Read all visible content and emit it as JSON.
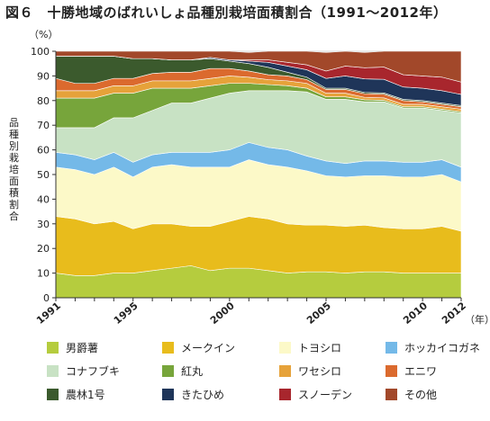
{
  "title": "図６　十勝地域のばれいしょ品種別栽培面積割合（1991～2012年）",
  "chart_data": {
    "type": "area",
    "stacked": true,
    "title": "図６　十勝地域のばれいしょ品種別栽培面積割合（1991～2012年）",
    "ylabel": "品種別栽培面積割合",
    "y_unit": "（%）",
    "xlabel": "（年）",
    "ylim": [
      0,
      100
    ],
    "y_ticks": [
      0,
      10,
      20,
      30,
      40,
      50,
      60,
      70,
      80,
      90,
      100
    ],
    "x_ticks": [
      1991,
      1995,
      2000,
      2005,
      2010,
      2012
    ],
    "grid": true,
    "legend_position": "bottom",
    "x": [
      1991,
      1992,
      1993,
      1994,
      1995,
      1996,
      1997,
      1998,
      1999,
      2000,
      2001,
      2002,
      2003,
      2004,
      2005,
      2006,
      2007,
      2008,
      2009,
      2010,
      2011,
      2012
    ],
    "series": [
      {
        "name": "男爵薯",
        "color": "#b5cc3e",
        "values": [
          10,
          9,
          9,
          10,
          10,
          11,
          12,
          13,
          11,
          12,
          12,
          11,
          10,
          10.5,
          10.5,
          10,
          10.5,
          10.5,
          10,
          10,
          10,
          10
        ]
      },
      {
        "name": "メークイン",
        "color": "#e8bc1c",
        "values": [
          23,
          23,
          21,
          21,
          18,
          19,
          18,
          16,
          18,
          19,
          21,
          21,
          20,
          19,
          19,
          19,
          19,
          18,
          18,
          18,
          19,
          17
        ]
      },
      {
        "name": "トヨシロ",
        "color": "#fcf9c8",
        "values": [
          20,
          20,
          20,
          22,
          21,
          23,
          24,
          24,
          24,
          22,
          23,
          22,
          23,
          22,
          20,
          20,
          20,
          21,
          21,
          21,
          21,
          20
        ]
      },
      {
        "name": "ホッカイコガネ",
        "color": "#74b9e8",
        "values": [
          6,
          6,
          6,
          6,
          6,
          5,
          5,
          6,
          6,
          7,
          7,
          7,
          7,
          6,
          6,
          5.5,
          6,
          6,
          6,
          6,
          6,
          6
        ]
      },
      {
        "name": "コナフブキ",
        "color": "#c8e2c4",
        "values": [
          10,
          11,
          13,
          14,
          18,
          18,
          20,
          20,
          22,
          23,
          21,
          23,
          24,
          26,
          25,
          26,
          24,
          24,
          22,
          22,
          20,
          22
        ]
      },
      {
        "name": "紅丸",
        "color": "#77a53b",
        "values": [
          12,
          12,
          12,
          10,
          10,
          9,
          6,
          6,
          5,
          4,
          3,
          2.5,
          2,
          1.5,
          1,
          1,
          0.8,
          0.6,
          0.5,
          0.5,
          0.5,
          0.5
        ]
      },
      {
        "name": "ワセシロ",
        "color": "#e6a23a",
        "values": [
          3,
          3,
          3,
          3,
          3,
          3,
          3,
          3,
          3,
          3,
          2.5,
          2,
          2,
          2,
          1.5,
          1.5,
          1,
          1,
          1,
          1,
          1,
          1
        ]
      },
      {
        "name": "エニワ",
        "color": "#db6a2e",
        "values": [
          5,
          3,
          3,
          3,
          3,
          3,
          3.5,
          3.5,
          4,
          3,
          2.5,
          2,
          2,
          1.5,
          1.5,
          1.5,
          1.5,
          1.5,
          1.5,
          1,
          1,
          1
        ]
      },
      {
        "name": "農林1号",
        "color": "#3b5a2d",
        "values": [
          9,
          11,
          11,
          9,
          8,
          6,
          5,
          5,
          4,
          3,
          3,
          3,
          1.5,
          1,
          0.5,
          0.5,
          0.5,
          0.5,
          0.5,
          0.5,
          0.5,
          0.5
        ]
      },
      {
        "name": "きたひめ",
        "color": "#1f3559",
        "values": [
          0,
          0,
          0,
          0,
          0,
          0,
          0,
          0,
          0.5,
          0.5,
          1,
          2,
          2.5,
          3,
          4,
          5,
          5.5,
          5.5,
          5,
          5,
          5,
          4.5
        ]
      },
      {
        "name": "スノーデン",
        "color": "#a8262d",
        "values": [
          0,
          0,
          0,
          0,
          0,
          0,
          0,
          0,
          0,
          0,
          0.5,
          1,
          1.5,
          2,
          3,
          4,
          4.5,
          5,
          5,
          5,
          5.5,
          5
        ]
      },
      {
        "name": "その他",
        "color": "#a2482a",
        "values": [
          2,
          2,
          2,
          2,
          3,
          3,
          3.5,
          3.5,
          2.5,
          3.5,
          3,
          3.5,
          4.5,
          5.5,
          7.5,
          6,
          6.2,
          6.4,
          9.5,
          10,
          10.5,
          12.5
        ]
      }
    ]
  }
}
